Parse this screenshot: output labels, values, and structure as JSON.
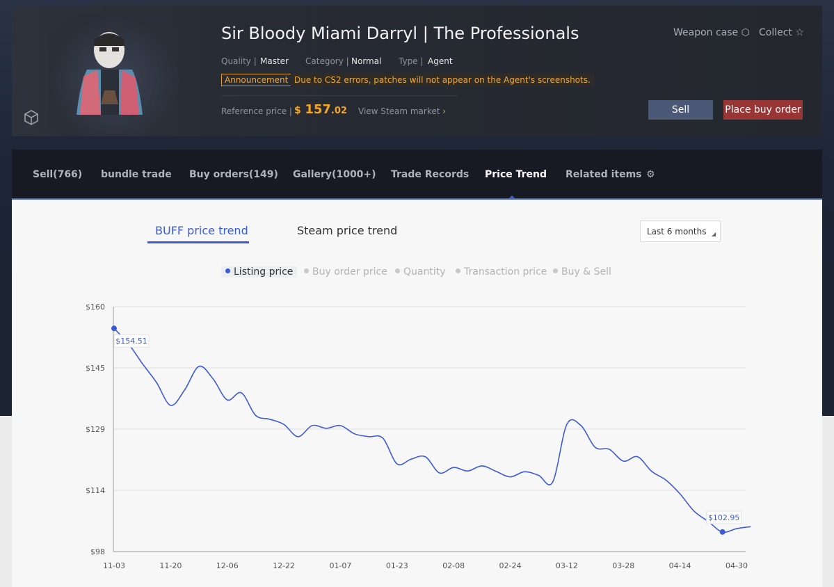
{
  "header": {
    "title": "Sir Bloody Miami Darryl | The Professionals",
    "quality_label": "Quality |",
    "quality": "Master",
    "category_label": "Category |",
    "category": "Normal",
    "type_label": "Type |",
    "type": "Agent",
    "announcement_tag": "Announcement",
    "announcement": "Due to CS2 errors, patches will not appear on the Agent's screenshots.",
    "reference_label": "Reference price |",
    "price_currency": "$",
    "price_int": "157",
    "price_dec": ".02",
    "steam_link": "View Steam market",
    "weapon_case": "Weapon case",
    "collect": "Collect",
    "sell_button": "Sell",
    "buy_order_button": "Place buy order"
  },
  "nav": {
    "tabs": [
      "Sell(766)",
      "bundle trade",
      "Buy orders(149)",
      "Gallery(1000+)",
      "Trade Records",
      "Price Trend",
      "Related items"
    ]
  },
  "trend": {
    "tabs": [
      "BUFF price trend",
      "Steam price trend"
    ],
    "range": "Last 6 months",
    "filters": [
      "Listing price",
      "Buy order price",
      "Quantity",
      "Transaction price",
      "Buy & Sell"
    ]
  },
  "chart_data": {
    "type": "line",
    "categories": [
      "11-03",
      null,
      null,
      null,
      "11-20",
      null,
      null,
      null,
      "12-06",
      null,
      null,
      null,
      "12-22",
      null,
      null,
      null,
      "01-07",
      null,
      null,
      null,
      "01-23",
      null,
      null,
      null,
      "02-08",
      null,
      null,
      null,
      "02-24",
      null,
      null,
      null,
      "03-12",
      null,
      null,
      null,
      "03-28",
      null,
      null,
      null,
      "04-14",
      null,
      null,
      null,
      "04-30",
      null
    ],
    "series": [
      {
        "name": "Listing price",
        "color": "#3b5bd6",
        "values": [
          154.51,
          150.7,
          145.6,
          140.8,
          135.0,
          139.0,
          144.9,
          141.7,
          136.4,
          138.2,
          132.5,
          131.5,
          130.2,
          127.1,
          129.9,
          129.2,
          129.9,
          127.8,
          127.1,
          126.7,
          120.2,
          121.4,
          122.0,
          117.9,
          119.3,
          118.4,
          119.7,
          118.3,
          116.9,
          118.2,
          117.3,
          115.6,
          130.2,
          129.9,
          124.4,
          123.9,
          120.9,
          122.0,
          118.3,
          116.1,
          112.6,
          108.2,
          105.6,
          102.95,
          103.8,
          104.3
        ],
        "value_labels": [
          "$154.51",
          null,
          null,
          null,
          null,
          null,
          null,
          null,
          null,
          null,
          null,
          null,
          null,
          null,
          null,
          null,
          null,
          null,
          null,
          null,
          null,
          null,
          null,
          null,
          null,
          null,
          null,
          null,
          null,
          null,
          null,
          null,
          null,
          null,
          null,
          null,
          null,
          null,
          null,
          null,
          null,
          null,
          null,
          "$102.95",
          null,
          null
        ]
      }
    ],
    "ylim": [
      98,
      160
    ],
    "yticks": [
      {
        "value": 98,
        "label": "$98"
      },
      {
        "value": 113.5,
        "label": "$114"
      },
      {
        "value": 129,
        "label": "$129"
      },
      {
        "value": 144.5,
        "label": "$145"
      },
      {
        "value": 160,
        "label": "$160"
      }
    ],
    "grid": true
  }
}
